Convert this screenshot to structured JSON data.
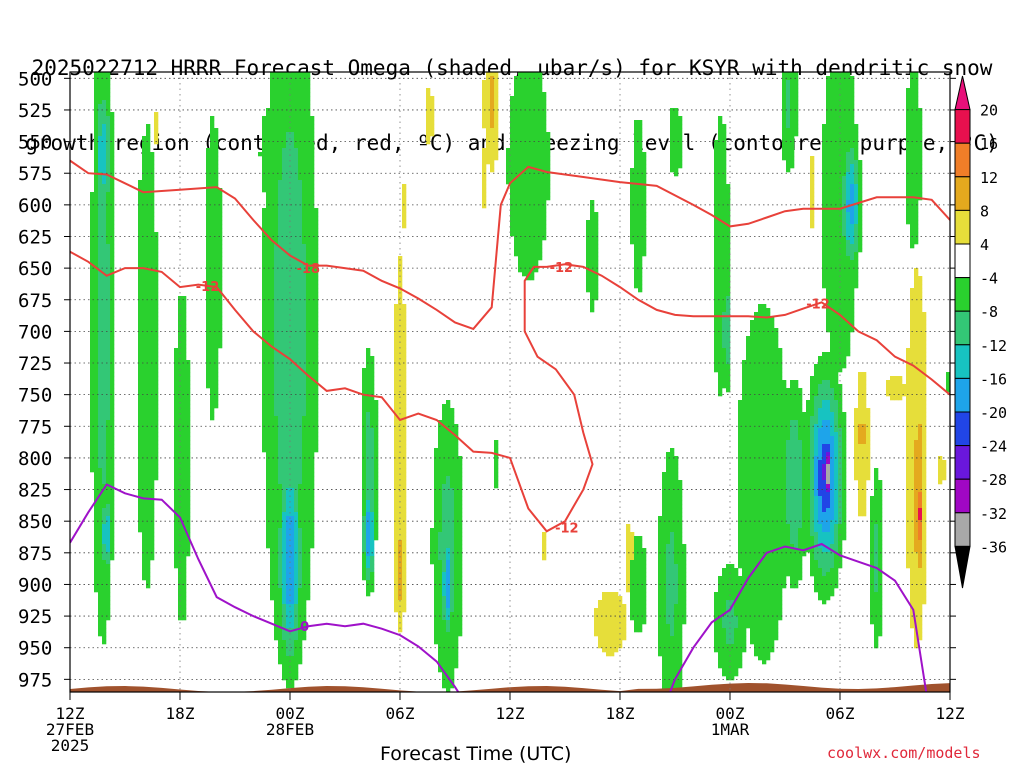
{
  "title": {
    "line1": "2025022712 HRRR Forecast Omega (shaded, µbar/s) for KSYR with dendritic snow",
    "line2": "growth region (contoured, red, ºC) and freezing level (contoured, purple, ºC)"
  },
  "credit": "coolwx.com/models",
  "chart_data": {
    "type": "heatmap",
    "title": "2025022712 HRRR Forecast Omega (shaded, µbar/s) for KSYR with dendritic snow growth region (contoured, red, ºC) and freezing level (contoured, purple, ºC)",
    "xlabel": "Forecast Time (UTC)",
    "ylabel": "",
    "x_start_label": "12Z 27FEB 2025",
    "x_hours_range": [
      0,
      48
    ],
    "ylim": [
      985,
      495
    ],
    "y_ticks": [
      500,
      525,
      550,
      575,
      600,
      625,
      650,
      675,
      700,
      725,
      750,
      775,
      800,
      825,
      850,
      875,
      900,
      925,
      950,
      975
    ],
    "x_ticks": [
      {
        "hour": 0,
        "lines": [
          "12Z",
          "27FEB",
          "2025"
        ]
      },
      {
        "hour": 6,
        "lines": [
          "18Z"
        ]
      },
      {
        "hour": 12,
        "lines": [
          "00Z",
          "28FEB"
        ]
      },
      {
        "hour": 18,
        "lines": [
          "06Z"
        ]
      },
      {
        "hour": 24,
        "lines": [
          "12Z"
        ]
      },
      {
        "hour": 30,
        "lines": [
          "18Z"
        ]
      },
      {
        "hour": 36,
        "lines": [
          "00Z",
          "1MAR"
        ]
      },
      {
        "hour": 42,
        "lines": [
          "06Z"
        ]
      },
      {
        "hour": 48,
        "lines": [
          "12Z"
        ]
      }
    ],
    "colorbar": {
      "labels": [
        "20",
        "16",
        "12",
        "8",
        "4",
        "-4",
        "-8",
        "-12",
        "-16",
        "-20",
        "-24",
        "-28",
        "-32",
        "-36"
      ],
      "colors": [
        "#e8104e",
        "#f07e28",
        "#e4a91e",
        "#e6de3a",
        "#ffffff",
        "#2ad12e",
        "#33c776",
        "#17c3c1",
        "#1ea4ea",
        "#2145e6",
        "#6a17dc",
        "#a007c4",
        "#a8a8a8",
        "#000000"
      ],
      "top_triangle_color": "#e8107a",
      "bottom_triangle_color": "#000000"
    },
    "omega_blobs": [
      {
        "h": 1.8,
        "p": 700,
        "rh": 0.7,
        "rp": 260,
        "v": -10
      },
      {
        "h": 1.8,
        "p": 560,
        "rh": 0.5,
        "rp": 60,
        "v": -14
      },
      {
        "h": 2.0,
        "p": 860,
        "rh": 0.3,
        "rp": 30,
        "v": -16
      },
      {
        "h": 4.2,
        "p": 720,
        "rh": 0.7,
        "rp": 220,
        "v": -8
      },
      {
        "h": 4.6,
        "p": 540,
        "rh": 0.25,
        "rp": 40,
        "v": 5
      },
      {
        "h": 6.1,
        "p": 800,
        "rh": 0.5,
        "rp": 160,
        "v": -8
      },
      {
        "h": 7.8,
        "p": 650,
        "rh": 0.6,
        "rp": 160,
        "v": -7
      },
      {
        "h": 11.0,
        "p": 560,
        "rh": 1.0,
        "rp": 60,
        "v": -6
      },
      {
        "h": 12.0,
        "p": 700,
        "rh": 1.5,
        "rp": 280,
        "v": -11
      },
      {
        "h": 12.0,
        "p": 880,
        "rh": 0.6,
        "rp": 80,
        "v": -20
      },
      {
        "h": 16.3,
        "p": 810,
        "rh": 0.5,
        "rp": 100,
        "v": -10
      },
      {
        "h": 16.3,
        "p": 860,
        "rh": 0.3,
        "rp": 40,
        "v": -20
      },
      {
        "h": 18.0,
        "p": 780,
        "rh": 0.5,
        "rp": 220,
        "v": 6
      },
      {
        "h": 18.0,
        "p": 890,
        "rh": 0.3,
        "rp": 50,
        "v": 10
      },
      {
        "h": 18.2,
        "p": 600,
        "rh": 0.3,
        "rp": 50,
        "v": 4.5
      },
      {
        "h": 20.6,
        "p": 870,
        "rh": 0.9,
        "rp": 120,
        "v": -10
      },
      {
        "h": 20.6,
        "p": 900,
        "rh": 0.3,
        "rp": 40,
        "v": -20
      },
      {
        "h": 19.6,
        "p": 530,
        "rh": 0.4,
        "rp": 50,
        "v": 5
      },
      {
        "h": 23.0,
        "p": 520,
        "rh": 0.5,
        "rp": 60,
        "v": 9
      },
      {
        "h": 22.6,
        "p": 580,
        "rh": 0.3,
        "rp": 50,
        "v": 5
      },
      {
        "h": 23.2,
        "p": 805,
        "rh": 0.2,
        "rp": 25,
        "v": -7
      },
      {
        "h": 25.0,
        "p": 570,
        "rh": 1.5,
        "rp": 120,
        "v": -7
      },
      {
        "h": 25.8,
        "p": 870,
        "rh": 0.2,
        "rp": 30,
        "v": 5
      },
      {
        "h": 28.5,
        "p": 640,
        "rh": 0.5,
        "rp": 70,
        "v": -6
      },
      {
        "h": 29.5,
        "p": 930,
        "rh": 1.4,
        "rp": 40,
        "v": 6
      },
      {
        "h": 30.5,
        "p": 880,
        "rh": 0.5,
        "rp": 60,
        "v": 5
      },
      {
        "h": 31.0,
        "p": 900,
        "rh": 0.8,
        "rp": 60,
        "v": -6
      },
      {
        "h": 31.0,
        "p": 600,
        "rh": 0.6,
        "rp": 110,
        "v": -6
      },
      {
        "h": 33.0,
        "p": 550,
        "rh": 0.8,
        "rp": 60,
        "v": -5
      },
      {
        "h": 32.8,
        "p": 900,
        "rh": 0.8,
        "rp": 120,
        "v": -9
      },
      {
        "h": 35.5,
        "p": 640,
        "rh": 0.6,
        "rp": 150,
        "v": -7
      },
      {
        "h": 36.0,
        "p": 930,
        "rh": 1.0,
        "rp": 50,
        "v": -9
      },
      {
        "h": 35.8,
        "p": 700,
        "rh": 0.2,
        "rp": 50,
        "v": -13
      },
      {
        "h": 37.8,
        "p": 820,
        "rh": 1.7,
        "rp": 170,
        "v": -8
      },
      {
        "h": 39.5,
        "p": 820,
        "rh": 0.7,
        "rp": 80,
        "v": -12
      },
      {
        "h": 41.2,
        "p": 815,
        "rh": 0.9,
        "rp": 75,
        "v": -23
      },
      {
        "h": 41.3,
        "p": 812,
        "rh": 0.3,
        "rp": 25,
        "v": -36
      },
      {
        "h": 39.2,
        "p": 520,
        "rh": 0.5,
        "rp": 60,
        "v": -9
      },
      {
        "h": 42.0,
        "p": 600,
        "rh": 1.2,
        "rp": 160,
        "v": -8
      },
      {
        "h": 42.6,
        "p": 600,
        "rh": 0.5,
        "rp": 50,
        "v": -18
      },
      {
        "h": 40.4,
        "p": 590,
        "rh": 0.3,
        "rp": 70,
        "v": 5
      },
      {
        "h": 43.2,
        "p": 790,
        "rh": 0.5,
        "rp": 80,
        "v": 7
      },
      {
        "h": 43.2,
        "p": 780,
        "rh": 0.2,
        "rp": 25,
        "v": 12
      },
      {
        "h": 44.0,
        "p": 880,
        "rh": 0.4,
        "rp": 80,
        "v": -9
      },
      {
        "h": 45.0,
        "p": 745,
        "rh": 1.2,
        "rp": 20,
        "v": 5
      },
      {
        "h": 46.2,
        "p": 800,
        "rh": 0.8,
        "rp": 200,
        "v": 7
      },
      {
        "h": 46.3,
        "p": 830,
        "rh": 0.4,
        "rp": 90,
        "v": 12
      },
      {
        "h": 46.3,
        "p": 845,
        "rh": 0.2,
        "rp": 35,
        "v": 18
      },
      {
        "h": 47.5,
        "p": 810,
        "rh": 0.7,
        "rp": 35,
        "v": 4.5
      },
      {
        "h": 46.0,
        "p": 560,
        "rh": 0.5,
        "rp": 90,
        "v": -8
      },
      {
        "h": 47.8,
        "p": 740,
        "rh": 0.2,
        "rp": 60,
        "v": -5
      }
    ],
    "dgz_contours": [
      {
        "label": "-18",
        "points": [
          [
            0,
            565
          ],
          [
            1,
            575
          ],
          [
            2,
            576
          ],
          [
            3,
            583
          ],
          [
            4,
            590
          ],
          [
            6,
            588
          ],
          [
            8,
            586
          ],
          [
            9,
            595
          ],
          [
            10,
            612
          ],
          [
            11,
            628
          ],
          [
            12,
            640
          ],
          [
            13,
            648
          ],
          [
            14,
            648
          ],
          [
            16,
            652
          ],
          [
            17,
            660
          ],
          [
            18,
            666
          ],
          [
            19,
            674
          ],
          [
            20,
            683
          ],
          [
            21,
            693
          ],
          [
            22,
            698
          ],
          [
            23,
            681
          ],
          [
            23.5,
            600
          ],
          [
            24,
            583
          ],
          [
            25,
            570
          ],
          [
            26,
            574
          ],
          [
            28,
            578
          ],
          [
            30,
            582
          ],
          [
            32,
            585
          ],
          [
            34,
            600
          ],
          [
            35,
            608
          ],
          [
            36,
            617
          ],
          [
            37,
            615
          ],
          [
            38,
            610
          ],
          [
            39,
            605
          ],
          [
            40,
            603
          ],
          [
            42,
            603
          ],
          [
            44,
            594
          ],
          [
            46,
            594
          ],
          [
            47,
            596
          ],
          [
            48,
            612
          ]
        ],
        "label_at": [
          13.0,
          650
        ]
      },
      {
        "label": "-12",
        "points": [
          [
            0,
            637
          ],
          [
            1,
            645
          ],
          [
            2,
            656
          ],
          [
            3,
            650
          ],
          [
            4,
            650
          ],
          [
            5,
            653
          ],
          [
            6,
            665
          ],
          [
            7,
            663
          ],
          [
            8,
            665
          ],
          [
            9,
            683
          ],
          [
            10,
            700
          ],
          [
            11,
            712
          ],
          [
            12,
            722
          ],
          [
            13,
            735
          ],
          [
            14,
            747
          ],
          [
            15,
            745
          ],
          [
            16,
            750
          ],
          [
            17,
            752
          ],
          [
            18,
            770
          ],
          [
            19,
            765
          ],
          [
            20,
            770
          ],
          [
            21,
            782
          ],
          [
            22,
            795
          ],
          [
            23,
            796
          ],
          [
            24,
            800
          ],
          [
            25,
            840
          ],
          [
            26,
            858
          ],
          [
            27,
            850
          ],
          [
            28,
            825
          ],
          [
            28.5,
            805
          ],
          [
            28,
            780
          ],
          [
            27.5,
            750
          ],
          [
            26.5,
            730
          ],
          [
            25.5,
            720
          ],
          [
            24.8,
            700
          ],
          [
            24.8,
            660
          ],
          [
            25.3,
            649
          ],
          [
            26,
            649
          ],
          [
            27,
            647
          ],
          [
            28,
            649
          ],
          [
            29,
            656
          ],
          [
            30,
            665
          ],
          [
            31,
            675
          ],
          [
            32,
            683
          ],
          [
            33,
            687
          ],
          [
            34,
            688
          ],
          [
            35,
            688
          ],
          [
            36,
            688
          ],
          [
            37,
            688
          ],
          [
            38,
            689
          ],
          [
            39,
            687
          ],
          [
            40,
            682
          ],
          [
            41,
            677
          ],
          [
            42,
            687
          ],
          [
            43,
            700
          ],
          [
            44,
            707
          ],
          [
            45,
            720
          ],
          [
            46,
            727
          ],
          [
            47,
            738
          ],
          [
            48,
            750
          ]
        ],
        "labels_at": [
          [
            7.5,
            664
          ],
          [
            26.8,
            649
          ],
          [
            40.8,
            678
          ],
          [
            27.1,
            855
          ]
        ]
      }
    ],
    "freezing_contour": {
      "label": "0",
      "points": [
        [
          0,
          867
        ],
        [
          1,
          843
        ],
        [
          2,
          821
        ],
        [
          3,
          828
        ],
        [
          4,
          832
        ],
        [
          5,
          833
        ],
        [
          6,
          847
        ],
        [
          7,
          880
        ],
        [
          8,
          910
        ],
        [
          9,
          918
        ],
        [
          10,
          925
        ],
        [
          11,
          931
        ],
        [
          12,
          937
        ],
        [
          13,
          933
        ],
        [
          14,
          931
        ],
        [
          15,
          933
        ],
        [
          16,
          931
        ],
        [
          17,
          935
        ],
        [
          18,
          940
        ],
        [
          19,
          949
        ],
        [
          20,
          961
        ],
        [
          21,
          981
        ],
        [
          21.4,
          990
        ]
      ],
      "points2": [
        [
          32.6,
          990
        ],
        [
          33,
          975
        ],
        [
          34,
          950
        ],
        [
          35,
          930
        ],
        [
          36,
          920
        ],
        [
          37,
          895
        ],
        [
          38,
          875
        ],
        [
          39,
          870
        ],
        [
          40,
          873
        ],
        [
          41,
          868
        ],
        [
          42,
          877
        ],
        [
          43,
          882
        ],
        [
          44,
          887
        ],
        [
          45,
          897
        ],
        [
          46,
          920
        ],
        [
          46.7,
          985
        ]
      ],
      "label_at": [
        12.8,
        933
      ]
    },
    "terrain_color": "#a0522d"
  }
}
